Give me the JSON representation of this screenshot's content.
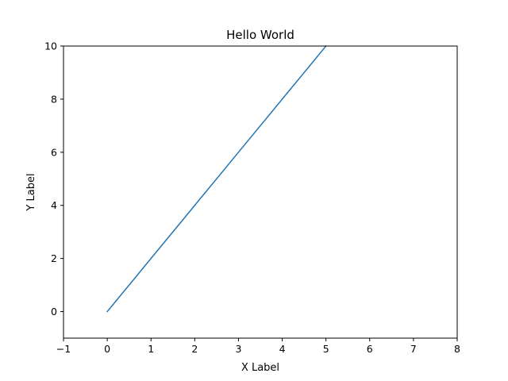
{
  "chart_data": {
    "type": "line",
    "title": "Hello World",
    "xlabel": "X Label",
    "ylabel": "Y Label",
    "xlim": [
      -1,
      8
    ],
    "ylim": [
      -1,
      10
    ],
    "x_ticks": [
      -1,
      0,
      1,
      2,
      3,
      4,
      5,
      6,
      7,
      8
    ],
    "y_ticks": [
      0,
      2,
      4,
      6,
      8,
      10
    ],
    "grid": false,
    "series": [
      {
        "color": "#1f77b4",
        "x": [
          0,
          1,
          2,
          3,
          4,
          5
        ],
        "y": [
          0,
          2,
          4,
          6,
          8,
          10
        ]
      }
    ]
  }
}
